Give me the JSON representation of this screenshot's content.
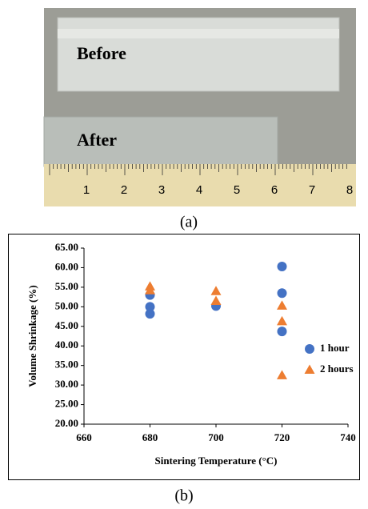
{
  "photo": {
    "labels": [
      "Before",
      "After"
    ],
    "ruler_numbers": [
      "1",
      "2",
      "3",
      "4",
      "5",
      "6",
      "7",
      "8"
    ]
  },
  "captions": [
    "(a)",
    "(b)"
  ],
  "chart_data": {
    "type": "scatter",
    "x_label": "Sintering Temperature (°C)",
    "y_label": "Volume Shrinkage (%)",
    "xlim": [
      660,
      740
    ],
    "xticks": [
      660,
      680,
      700,
      720,
      740
    ],
    "ylim": [
      20,
      65
    ],
    "yticks": [
      {
        "value": 20,
        "label": "20.00"
      },
      {
        "value": 25,
        "label": "25.00"
      },
      {
        "value": 30,
        "label": "30.00"
      },
      {
        "value": 35,
        "label": "35.00"
      },
      {
        "value": 40,
        "label": "40.00"
      },
      {
        "value": 45,
        "label": "45.00"
      },
      {
        "value": 50,
        "label": "50.00"
      },
      {
        "value": 55,
        "label": "55.00"
      },
      {
        "value": 60,
        "label": "60.00"
      },
      {
        "value": 65,
        "label": "65.00"
      }
    ],
    "grid": false,
    "legend": "right",
    "series": [
      {
        "name": "1 hour",
        "color": "#4472c4",
        "marker": "circle",
        "x": [
          680,
          680,
          680,
          700,
          720,
          720,
          720
        ],
        "y": [
          53,
          50,
          48.2,
          50.2,
          60.3,
          53.5,
          43.7
        ]
      },
      {
        "name": "2 hours",
        "color": "#ed7d31",
        "marker": "triangle",
        "x": [
          680,
          680,
          700,
          700,
          720,
          720,
          720
        ],
        "y": [
          55.2,
          54.2,
          54,
          51.5,
          50.3,
          46.3,
          32.5
        ]
      }
    ]
  }
}
